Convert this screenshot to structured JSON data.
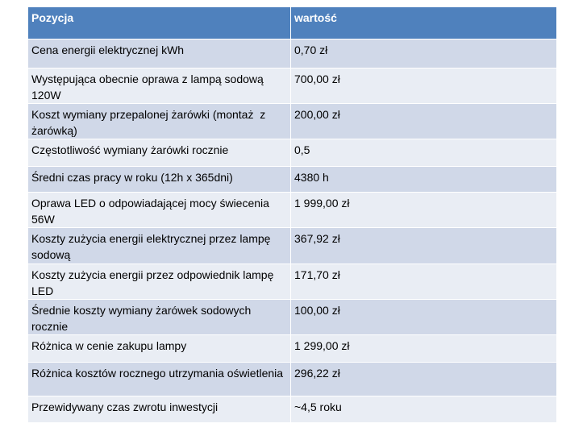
{
  "table": {
    "header": [
      "Pozycja",
      "wartość"
    ],
    "rows": [
      [
        "Cena energii elektrycznej kWh",
        "0,70 zł"
      ],
      [
        "Występująca obecnie oprawa z lampą sodową 120W",
        "700,00 zł"
      ],
      [
        "Koszt wymiany przepalonej żarówki (montaż  z żarówką)",
        "200,00 zł"
      ],
      [
        "Częstotliwość wymiany żarówki rocznie",
        "0,5"
      ],
      [
        "Średni czas pracy w roku (12h x 365dni)",
        "4380 h"
      ],
      [
        "Oprawa LED o odpowiadającej mocy świecenia 56W",
        "1 999,00 zł"
      ],
      [
        "Koszty zużycia energii elektrycznej przez lampę sodową",
        "367,92 zł"
      ],
      [
        "Koszty zużycia energii przez odpowiednik lampę LED",
        "171,70 zł"
      ],
      [
        "Średnie koszty wymiany żarówek sodowych rocznie",
        "100,00 zł"
      ],
      [
        "Różnica w cenie zakupu lampy",
        "1 299,00 zł"
      ],
      [
        "Różnica kosztów rocznego utrzymania oświetlenia",
        "296,22 zł"
      ],
      [
        "Przewidywany czas zwrotu inwestycji",
        "~4,5 roku"
      ]
    ]
  }
}
